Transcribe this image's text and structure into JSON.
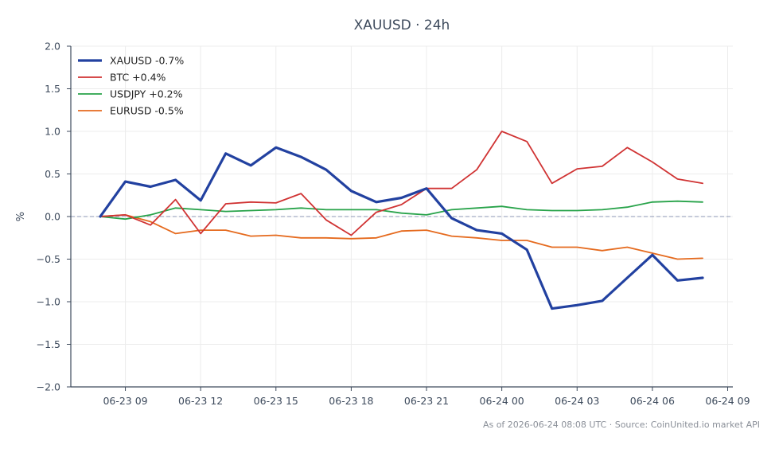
{
  "chart_data": {
    "type": "line",
    "title": "XAUUSD · 24h",
    "xlabel": "",
    "ylabel": "%",
    "ylim": [
      -2.0,
      2.0
    ],
    "y_ticks": [
      "2.0",
      "1.5",
      "1.0",
      "0.5",
      "0.0",
      "−0.5",
      "−1.0",
      "−1.5",
      "−2.0"
    ],
    "x_ticks": [
      "06-23 09",
      "06-23 12",
      "06-23 15",
      "06-23 18",
      "06-23 21",
      "06-24 00",
      "06-24 03",
      "06-24 06",
      "06-24 09"
    ],
    "x": [
      "06-23 08",
      "06-23 09",
      "06-23 10",
      "06-23 11",
      "06-23 12",
      "06-23 13",
      "06-23 14",
      "06-23 15",
      "06-23 16",
      "06-23 17",
      "06-23 18",
      "06-23 19",
      "06-23 20",
      "06-23 21",
      "06-23 22",
      "06-23 23",
      "06-24 00",
      "06-24 01",
      "06-24 02",
      "06-24 03",
      "06-24 04",
      "06-24 05",
      "06-24 06",
      "06-24 07",
      "06-24 08"
    ],
    "zero_line": true,
    "grid": true,
    "legend_position": "top-left",
    "series": [
      {
        "name": "XAUUSD -0.7%",
        "color": "#2241a0",
        "values": [
          0.0,
          0.41,
          0.35,
          0.43,
          0.19,
          0.74,
          0.6,
          0.81,
          0.7,
          0.55,
          0.3,
          0.17,
          0.22,
          0.33,
          -0.02,
          -0.16,
          -0.2,
          -0.39,
          -1.08,
          -1.04,
          -0.99,
          -0.72,
          -0.45,
          -0.75,
          -0.72
        ]
      },
      {
        "name": "BTC +0.4%",
        "color": "#d03333",
        "values": [
          0.0,
          0.02,
          -0.1,
          0.2,
          -0.2,
          0.15,
          0.17,
          0.16,
          0.27,
          -0.04,
          -0.22,
          0.05,
          0.14,
          0.33,
          0.33,
          0.55,
          1.0,
          0.88,
          0.39,
          0.56,
          0.59,
          0.81,
          0.64,
          0.44,
          0.39
        ]
      },
      {
        "name": "USDJPY +0.2%",
        "color": "#28a34a",
        "values": [
          0.0,
          -0.03,
          0.02,
          0.1,
          0.08,
          0.06,
          0.07,
          0.08,
          0.1,
          0.08,
          0.08,
          0.08,
          0.04,
          0.02,
          0.08,
          0.1,
          0.12,
          0.08,
          0.07,
          0.07,
          0.08,
          0.11,
          0.17,
          0.18,
          0.17
        ]
      },
      {
        "name": "EURUSD -0.5%",
        "color": "#e56a1e",
        "values": [
          0.0,
          0.02,
          -0.06,
          -0.2,
          -0.16,
          -0.16,
          -0.23,
          -0.22,
          -0.25,
          -0.25,
          -0.26,
          -0.25,
          -0.17,
          -0.16,
          -0.23,
          -0.25,
          -0.28,
          -0.28,
          -0.36,
          -0.36,
          -0.4,
          -0.36,
          -0.43,
          -0.5,
          -0.49
        ]
      }
    ]
  },
  "footer": "As of 2026-06-24 08:08 UTC · Source: CoinUnited.io market API"
}
